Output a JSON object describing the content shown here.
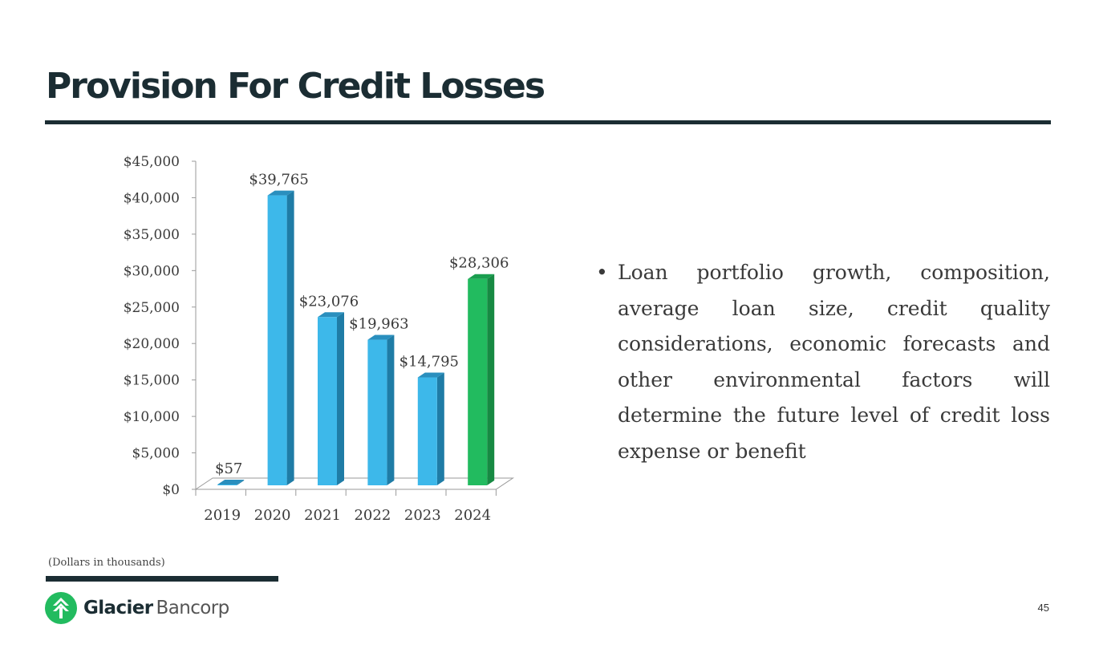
{
  "title": "Provision For Credit Losses",
  "chart_data": {
    "type": "bar",
    "categories": [
      "2019",
      "2020",
      "2021",
      "2022",
      "2023",
      "2024"
    ],
    "values": [
      57,
      39765,
      23076,
      19963,
      14795,
      28306
    ],
    "data_labels": [
      "$57",
      "$39,765",
      "$23,076",
      "$19,963",
      "$14,795",
      "$28,306"
    ],
    "yticks": [
      0,
      5000,
      10000,
      15000,
      20000,
      25000,
      30000,
      35000,
      40000,
      45000
    ],
    "ytick_labels": [
      "$0",
      "$5,000",
      "$10,000",
      "$15,000",
      "$20,000",
      "$25,000",
      "$30,000",
      "$35,000",
      "$40,000",
      "$45,000"
    ],
    "ylim": [
      0,
      45000
    ],
    "title": "",
    "xlabel": "",
    "ylabel": "",
    "grid": false,
    "style": "3d-column",
    "colors": {
      "default_front": "#3db8ea",
      "default_side": "#1f7ca6",
      "default_top": "#2a8fbe",
      "highlight_front": "#22bb5f",
      "highlight_side": "#178a43",
      "highlight_top": "#1a9e4f"
    },
    "highlight_category": "2024"
  },
  "bullets": [
    "Loan portfolio growth, composition, average loan size, credit quality considerations, economic forecasts and other environmental factors will determine the future level of credit loss expense or benefit"
  ],
  "footnote": "(Dollars in thousands)",
  "logo": {
    "name_bold": "Glacier",
    "name_light": "Bancorp",
    "color": "#22bb5f"
  },
  "page_number": "45",
  "theme": {
    "dark": "#1b2d33"
  }
}
